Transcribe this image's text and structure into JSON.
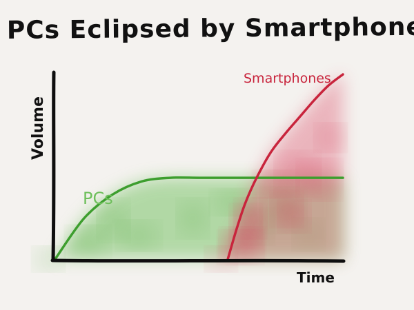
{
  "chart_data": {
    "type": "line",
    "title": "PCs Eclipsed by Smartphones",
    "xlabel": "Time",
    "ylabel": "Volume",
    "xlim": [
      0,
      100
    ],
    "ylim": [
      0,
      100
    ],
    "grid": false,
    "series": [
      {
        "name": "PCs",
        "color": "#3d9e2e",
        "fill": "#7cc46a",
        "x": [
          0,
          10,
          20,
          30,
          40,
          50,
          60,
          70,
          80,
          90,
          100
        ],
        "y": [
          0,
          22,
          35,
          42,
          44,
          44,
          44,
          44,
          44,
          44,
          44
        ]
      },
      {
        "name": "Smartphones",
        "color": "#c8243c",
        "fill": "#e06a80",
        "x": [
          60,
          63,
          66,
          70,
          75,
          80,
          85,
          90,
          95,
          100
        ],
        "y": [
          0,
          16,
          30,
          44,
          58,
          68,
          77,
          86,
          94,
          100
        ]
      }
    ]
  }
}
